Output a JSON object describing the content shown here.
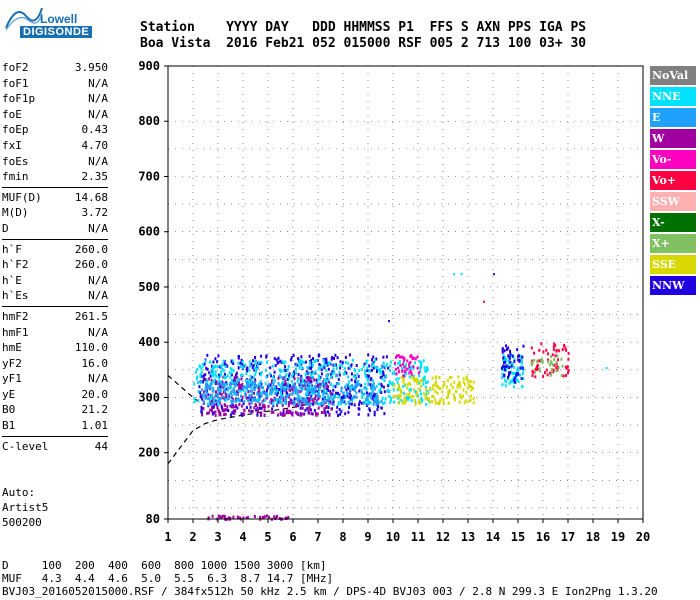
{
  "logo": {
    "line1": "Lowell",
    "line2": "DIGISONDE"
  },
  "header": {
    "line1": "Station    YYYY DAY   DDD HHMMSS P1  FFS S AXN PPS IGA PS",
    "line2": "Boa Vista  2016 Feb21 052 015000 RSF 005 2 713 100 03+ 30"
  },
  "params": {
    "group1": [
      [
        "foF2",
        "3.950"
      ],
      [
        "foF1",
        "N/A"
      ],
      [
        "foF1p",
        "N/A"
      ],
      [
        "foE",
        "N/A"
      ],
      [
        "foEp",
        "0.43"
      ],
      [
        "fxI",
        "4.70"
      ],
      [
        "foEs",
        "N/A"
      ],
      [
        "fmin",
        "2.35"
      ]
    ],
    "group2": [
      [
        "MUF(D)",
        "14.68"
      ],
      [
        "M(D)",
        "3.72"
      ],
      [
        "D",
        "N/A"
      ]
    ],
    "group3": [
      [
        "h`F",
        "260.0"
      ],
      [
        "h`F2",
        "260.0"
      ],
      [
        "h`E",
        "N/A"
      ],
      [
        "h`Es",
        "N/A"
      ]
    ],
    "group4": [
      [
        "hmF2",
        "261.5"
      ],
      [
        "hmF1",
        "N/A"
      ],
      [
        "hmE",
        "110.0"
      ],
      [
        "yF2",
        "16.0"
      ],
      [
        "yF1",
        "N/A"
      ],
      [
        "yE",
        "20.0"
      ],
      [
        "B0",
        "21.2"
      ],
      [
        "B1",
        "1.01"
      ]
    ],
    "group5": [
      [
        "C-level",
        "44"
      ]
    ]
  },
  "auto": {
    "l1": "Auto:",
    "l2": "Artist5",
    "l3": "500200"
  },
  "footer": {
    "l1": "D     100  200  400  600  800 1000 1500 3000 [km]",
    "l2": "MUF   4.3  4.4  4.6  5.0  5.5  6.3  8.7 14.7 [MHz]",
    "l3": "BVJ03_2016052015000.RSF / 384fx512h 50 kHz 2.5 km / DPS-4D BVJ03 003 / 2.8 N 299.3 E Ion2Png 1.3.20"
  },
  "legend": [
    {
      "label": "NoVal",
      "color": "#808080"
    },
    {
      "label": "NNE",
      "color": "#00e0ff"
    },
    {
      "label": "E",
      "color": "#20a0ff"
    },
    {
      "label": "W",
      "color": "#a000a0"
    },
    {
      "label": "Vo-",
      "color": "#ff00c0"
    },
    {
      "label": "Vo+",
      "color": "#ff0040"
    },
    {
      "label": "SSW",
      "color": "#ffb0b0"
    },
    {
      "label": "X-",
      "color": "#007000"
    },
    {
      "label": "X+",
      "color": "#80c060"
    },
    {
      "label": "SSE",
      "color": "#d8d800"
    },
    {
      "label": "NNW",
      "color": "#2000e0"
    }
  ],
  "chart_data": {
    "type": "scatter",
    "xlabel": "",
    "ylabel": "",
    "xlim": [
      1,
      20
    ],
    "ylim": [
      80,
      900
    ],
    "xticks": [
      "1",
      "2",
      "3",
      "4",
      "5",
      "6",
      "7",
      "8",
      "9",
      "10",
      "11",
      "12",
      "13",
      "14",
      "15",
      "16",
      "17",
      "18",
      "19",
      "20"
    ],
    "yticks": [
      "80",
      "200",
      "300",
      "400",
      "500",
      "600",
      "700",
      "800",
      "900"
    ],
    "grid": true,
    "clusters": [
      {
        "name": "NNW",
        "color": "#2000e0",
        "x": [
          2.2,
          9.8
        ],
        "y": [
          270,
          380
        ],
        "n": 520
      },
      {
        "name": "W",
        "color": "#a000a0",
        "x": [
          2.3,
          7.5
        ],
        "y": [
          270,
          340
        ],
        "n": 300
      },
      {
        "name": "NNE",
        "color": "#00e0ff",
        "x": [
          2.0,
          11.5
        ],
        "y": [
          290,
          370
        ],
        "n": 520
      },
      {
        "name": "E",
        "color": "#20a0ff",
        "x": [
          2.3,
          9.5
        ],
        "y": [
          290,
          330
        ],
        "n": 260
      },
      {
        "name": "Vo-",
        "color": "#ff00c0",
        "x": [
          10.0,
          11.0
        ],
        "y": [
          340,
          380
        ],
        "n": 40
      },
      {
        "name": "SSE",
        "color": "#d8d800",
        "x": [
          10.0,
          13.2
        ],
        "y": [
          290,
          340
        ],
        "n": 160
      },
      {
        "name": "NNE",
        "color": "#00e0ff",
        "x": [
          14.3,
          15.2
        ],
        "y": [
          320,
          380
        ],
        "n": 70
      },
      {
        "name": "NNW",
        "color": "#2000e0",
        "x": [
          14.3,
          15.2
        ],
        "y": [
          330,
          400
        ],
        "n": 50
      },
      {
        "name": "Vo+",
        "color": "#ff0040",
        "x": [
          15.5,
          17.0
        ],
        "y": [
          340,
          400
        ],
        "n": 60
      },
      {
        "name": "X+",
        "color": "#80c060",
        "x": [
          15.5,
          16.8
        ],
        "y": [
          340,
          380
        ],
        "n": 30
      },
      {
        "name": "W",
        "color": "#a000a0",
        "x": [
          2.5,
          5.8
        ],
        "y": [
          82,
          88
        ],
        "n": 45
      }
    ],
    "isolated_points": [
      {
        "x": 12.4,
        "y": 525,
        "color": "#00e0ff"
      },
      {
        "x": 12.7,
        "y": 525,
        "color": "#00e0ff"
      },
      {
        "x": 14.0,
        "y": 525,
        "color": "#2000e0"
      },
      {
        "x": 13.6,
        "y": 475,
        "color": "#ff0040"
      },
      {
        "x": 9.8,
        "y": 440,
        "color": "#2000e0"
      },
      {
        "x": 18.5,
        "y": 355,
        "color": "#00e0ff"
      }
    ],
    "trace_upper": [
      [
        1.0,
        340
      ],
      [
        1.5,
        320
      ],
      [
        2.0,
        300
      ],
      [
        2.3,
        290
      ]
    ],
    "trace_lower": [
      [
        1.0,
        180
      ],
      [
        1.5,
        210
      ],
      [
        2.0,
        240
      ],
      [
        2.5,
        253
      ],
      [
        3.0,
        260
      ],
      [
        4.0,
        268
      ],
      [
        5.0,
        275
      ],
      [
        6.0,
        282
      ],
      [
        7.0,
        292
      ]
    ]
  }
}
